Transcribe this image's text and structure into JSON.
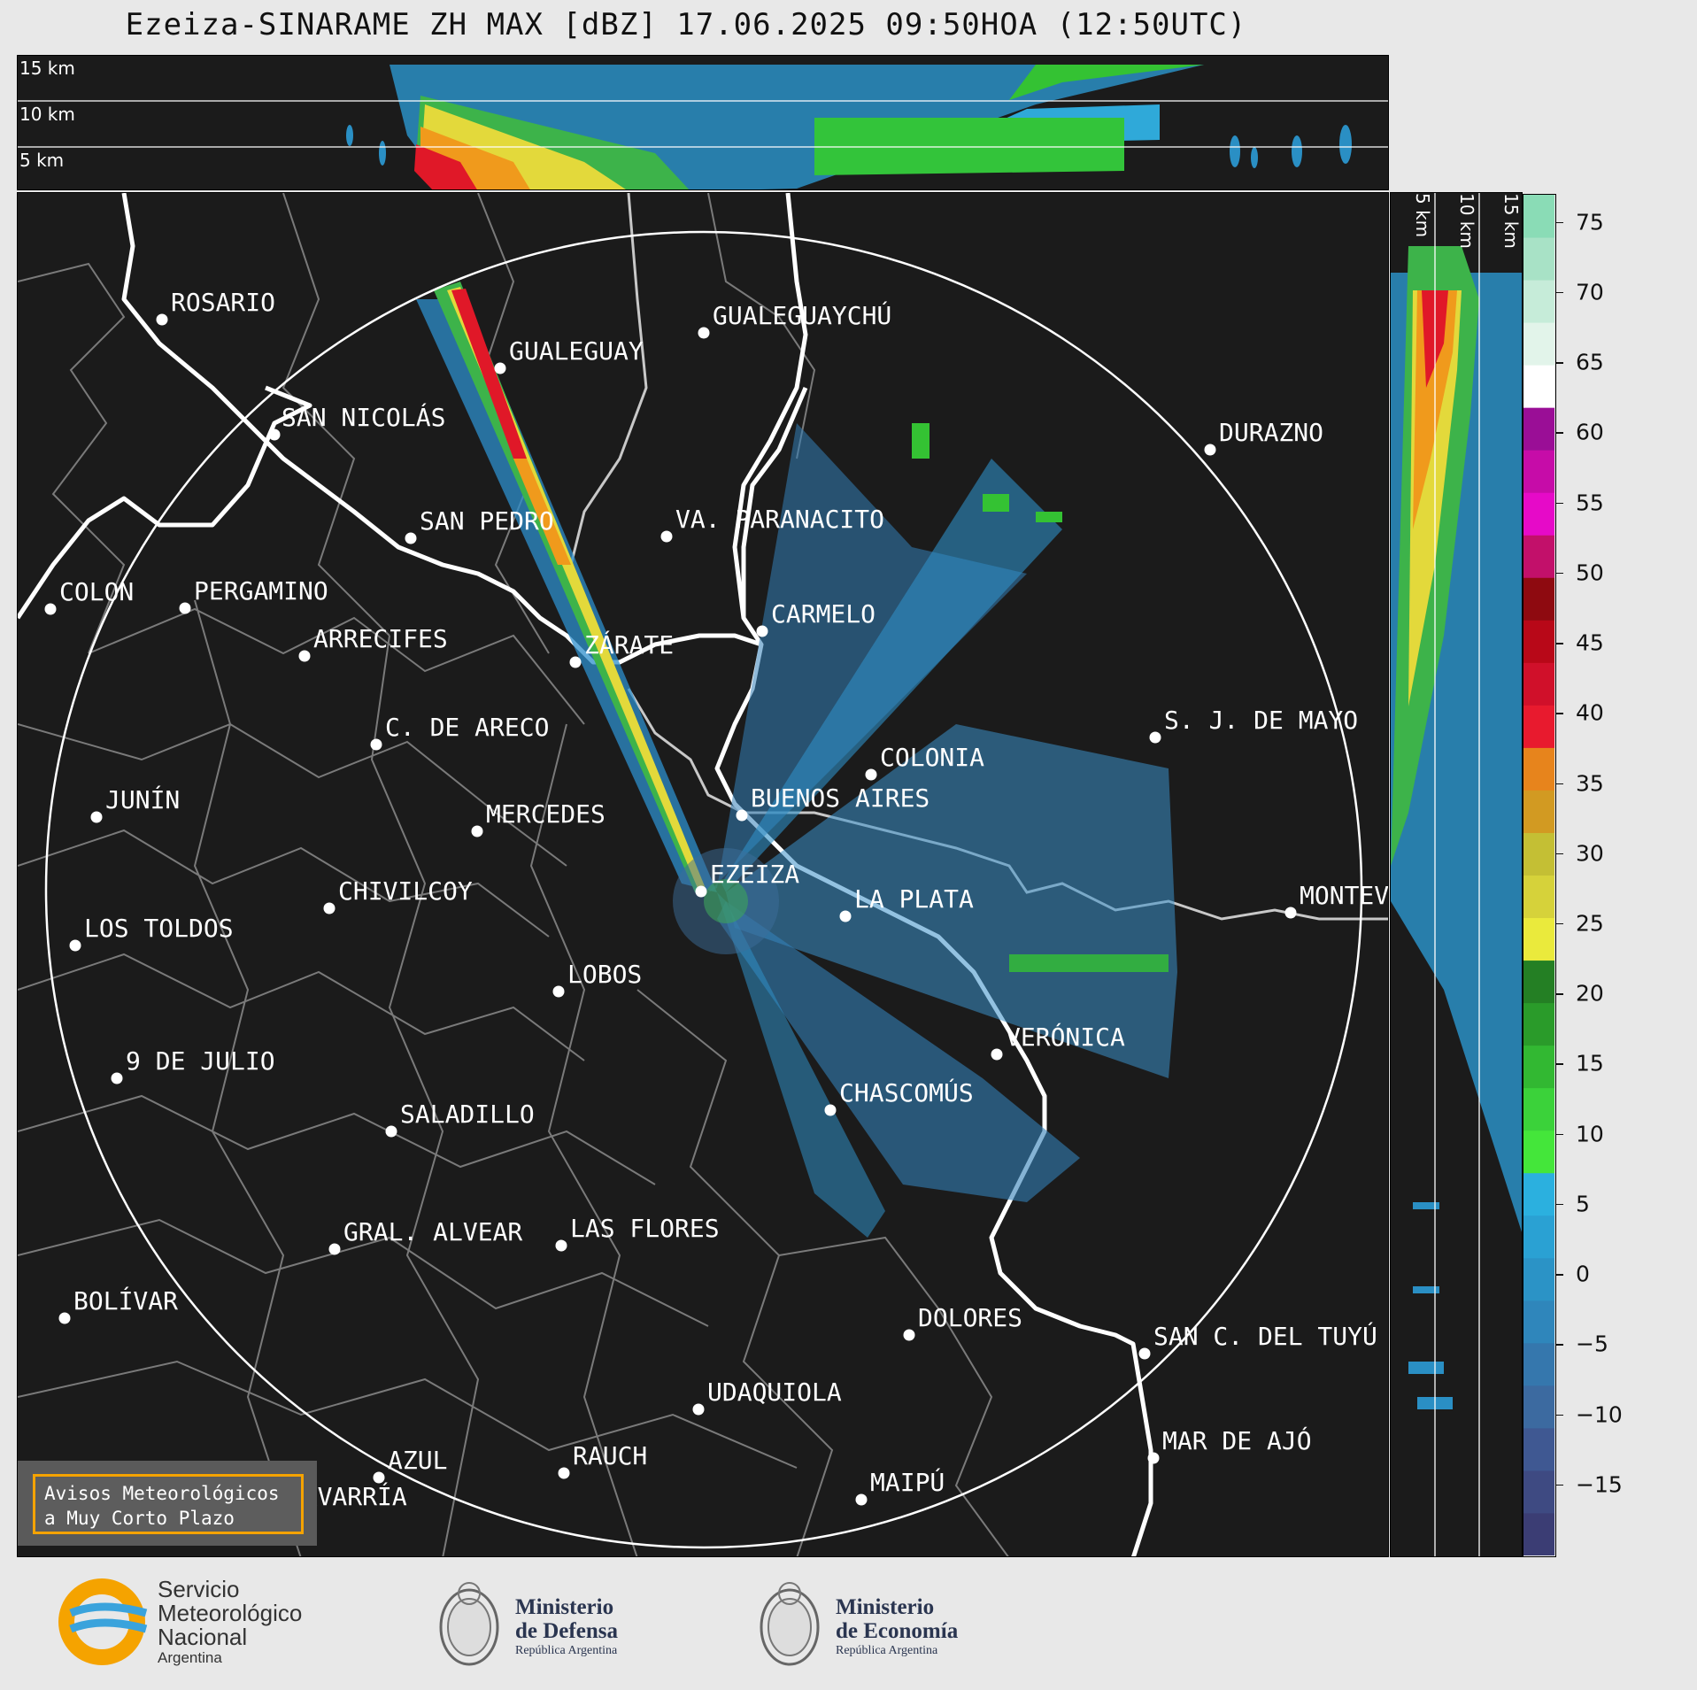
{
  "title": "Ezeiza-SINARAME ZH MAX [dBZ] 17.06.2025 09:50HOA (12:50UTC)",
  "top_panel": {
    "height_labels": [
      "15 km",
      "10 km",
      "5 km"
    ]
  },
  "side_panel": {
    "height_labels": [
      "5 km",
      "10 km",
      "15 km"
    ]
  },
  "colorbar": {
    "unit": "dBZ",
    "ticks": [
      "75",
      "70",
      "65",
      "60",
      "55",
      "50",
      "45",
      "40",
      "35",
      "30",
      "25",
      "20",
      "15",
      "10",
      "5",
      "0",
      "−5",
      "−10",
      "−15"
    ],
    "range": [
      -20,
      77
    ]
  },
  "cities": [
    {
      "name": "ROSARIO"
    },
    {
      "name": "GUALEGUAYCHÚ"
    },
    {
      "name": "GUALEGUAY"
    },
    {
      "name": "SAN NICOLÁS"
    },
    {
      "name": "DURAZNO"
    },
    {
      "name": "SAN PEDRO"
    },
    {
      "name": "VA. PARANACITO"
    },
    {
      "name": "COLON"
    },
    {
      "name": "PERGAMINO"
    },
    {
      "name": "CARMELO"
    },
    {
      "name": "ARRECIFES"
    },
    {
      "name": "ZÁRATE"
    },
    {
      "name": "S. J. DE MAYO"
    },
    {
      "name": "C. DE ARECO"
    },
    {
      "name": "COLONIA"
    },
    {
      "name": "JUNÍN"
    },
    {
      "name": "BUENOS AIRES"
    },
    {
      "name": "MERCEDES"
    },
    {
      "name": "MONTEV"
    },
    {
      "name": "EZEIZA"
    },
    {
      "name": "CHIVILCOY"
    },
    {
      "name": "LA PLATA"
    },
    {
      "name": "LOS TOLDOS"
    },
    {
      "name": "LOBOS"
    },
    {
      "name": "VERÓNICA"
    },
    {
      "name": "9 DE JULIO"
    },
    {
      "name": "CHASCOMÚS"
    },
    {
      "name": "SALADILLO"
    },
    {
      "name": "GRAL. ALVEAR"
    },
    {
      "name": "LAS FLORES"
    },
    {
      "name": "BOLÍVAR"
    },
    {
      "name": "DOLORES"
    },
    {
      "name": "SAN C. DEL TUYÚ"
    },
    {
      "name": "UDAQUIOLA"
    },
    {
      "name": "MAR DE AJÓ"
    },
    {
      "name": "AZUL"
    },
    {
      "name": "RAUCH"
    },
    {
      "name": "MAIPÚ"
    },
    {
      "name": "OLAVARRÍA"
    }
  ],
  "aviso": {
    "line1": "Avisos Meteorológicos",
    "line2": "a Muy Corto Plazo"
  },
  "logos": {
    "smn": {
      "line1": "Servicio",
      "line2": "Meteorológico",
      "line3": "Nacional",
      "line4": "Argentina"
    },
    "defensa": {
      "line1": "Ministerio",
      "line2": "de Defensa",
      "line3": "República Argentina"
    },
    "economia": {
      "line1": "Ministerio",
      "line2": "de Economía",
      "line3": "República Argentina"
    }
  },
  "colors": {
    "background": "#1b1b1b",
    "range_ring": "#ffffff",
    "boundaries": "#888888",
    "coast": "#ffffff",
    "aviso_border": "#f5a300"
  }
}
